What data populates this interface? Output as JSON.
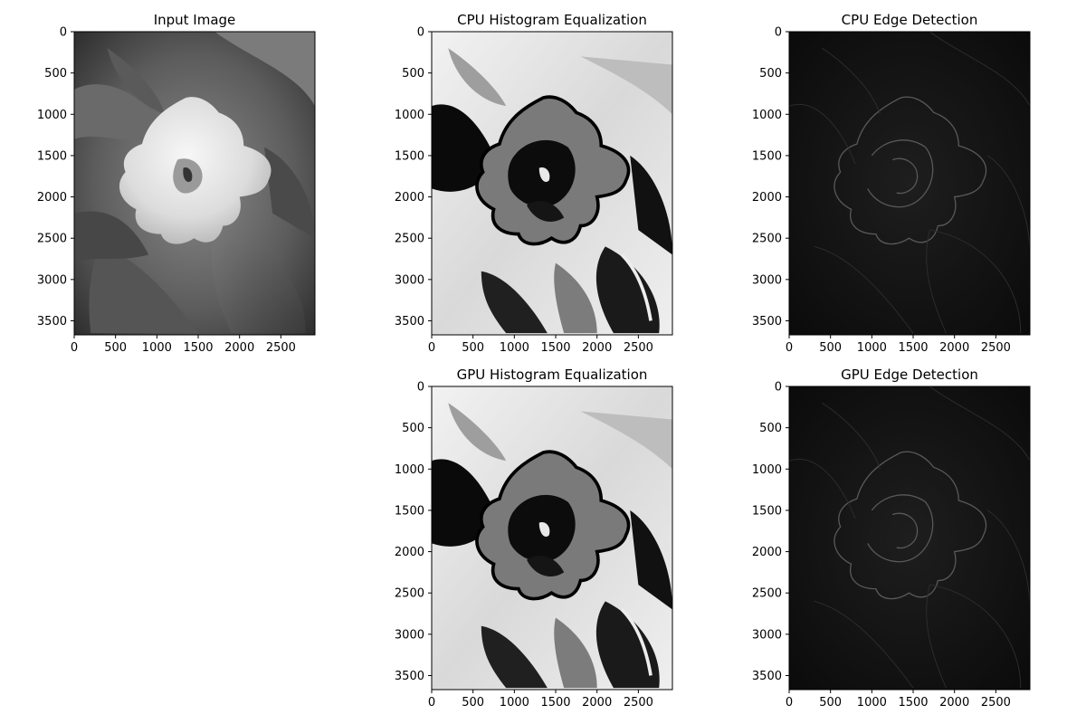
{
  "chart_data": [
    {
      "type": "image",
      "title": "Input Image",
      "content": "grayscale photo",
      "xlim": [
        0,
        2912
      ],
      "ylim": [
        3670,
        0
      ],
      "xticks": [
        0,
        500,
        1000,
        1500,
        2000,
        2500
      ],
      "yticks": [
        0,
        500,
        1000,
        1500,
        2000,
        2500,
        3000,
        3500
      ]
    },
    {
      "type": "image",
      "title": "CPU Histogram Equalization",
      "content": "histogram equalized",
      "xlim": [
        0,
        2912
      ],
      "ylim": [
        3670,
        0
      ],
      "xticks": [
        0,
        500,
        1000,
        1500,
        2000,
        2500
      ],
      "yticks": [
        0,
        500,
        1000,
        1500,
        2000,
        2500,
        3000,
        3500
      ]
    },
    {
      "type": "image",
      "title": "CPU Edge Detection",
      "content": "edge map",
      "xlim": [
        0,
        2912
      ],
      "ylim": [
        3670,
        0
      ],
      "xticks": [
        0,
        500,
        1000,
        1500,
        2000,
        2500
      ],
      "yticks": [
        0,
        500,
        1000,
        1500,
        2000,
        2500,
        3000,
        3500
      ]
    },
    {
      "type": "image",
      "title": "GPU Histogram Equalization",
      "content": "histogram equalized",
      "xlim": [
        0,
        2912
      ],
      "ylim": [
        3670,
        0
      ],
      "xticks": [
        0,
        500,
        1000,
        1500,
        2000,
        2500
      ],
      "yticks": [
        0,
        500,
        1000,
        1500,
        2000,
        2500,
        3000,
        3500
      ]
    },
    {
      "type": "image",
      "title": "GPU Edge Detection",
      "content": "edge map",
      "xlim": [
        0,
        2912
      ],
      "ylim": [
        3670,
        0
      ],
      "xticks": [
        0,
        500,
        1000,
        1500,
        2000,
        2500
      ],
      "yticks": [
        0,
        500,
        1000,
        1500,
        2000,
        2500,
        3000,
        3500
      ]
    }
  ]
}
